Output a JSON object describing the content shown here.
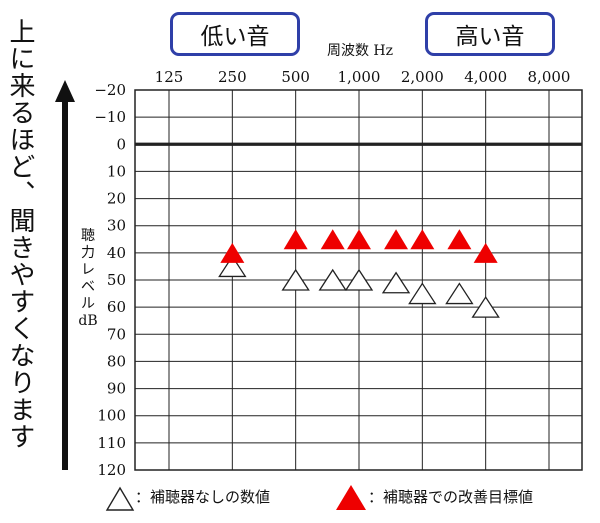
{
  "side_note": "上に来るほど、聞きやすくなります",
  "low_label": "低い音",
  "high_label": "高い音",
  "legend": {
    "without_aid": "：補聴器なしの数値",
    "target": "：補聴器での改善目標値"
  },
  "chart_data": {
    "type": "scatter",
    "title": "",
    "xlabel": "周波数 Hz",
    "ylabel": [
      "聴",
      "力",
      "レ",
      "ベ",
      "ル",
      "dB"
    ],
    "x_tick_labels": [
      "125",
      "250",
      "500",
      "1,000",
      "2,000",
      "4,000",
      "8,000"
    ],
    "x_ticks_hz": [
      125,
      250,
      500,
      1000,
      2000,
      4000,
      8000
    ],
    "x_scale": "log2",
    "xlim": [
      125,
      8000
    ],
    "y_tick_labels": [
      "−20",
      "−10",
      "0",
      "10",
      "20",
      "30",
      "40",
      "50",
      "60",
      "70",
      "80",
      "90",
      "100",
      "110",
      "120"
    ],
    "ylim": [
      -20,
      120
    ],
    "y_inverted": true,
    "zero_line": 0,
    "grid": true,
    "series": [
      {
        "marker": "triangle-open",
        "color": "#ffffff",
        "points": [
          {
            "x": 250,
            "y": 45
          },
          {
            "x": 500,
            "y": 50
          },
          {
            "x": 750,
            "y": 50
          },
          {
            "x": 1000,
            "y": 50
          },
          {
            "x": 1500,
            "y": 51
          },
          {
            "x": 2000,
            "y": 55
          },
          {
            "x": 3000,
            "y": 55
          },
          {
            "x": 4000,
            "y": 60
          }
        ]
      },
      {
        "marker": "triangle-filled",
        "color": "#ee0000",
        "points": [
          {
            "x": 250,
            "y": 40
          },
          {
            "x": 500,
            "y": 35
          },
          {
            "x": 750,
            "y": 35
          },
          {
            "x": 1000,
            "y": 35
          },
          {
            "x": 1500,
            "y": 35
          },
          {
            "x": 2000,
            "y": 35
          },
          {
            "x": 3000,
            "y": 35
          },
          {
            "x": 4000,
            "y": 40
          }
        ]
      }
    ]
  }
}
